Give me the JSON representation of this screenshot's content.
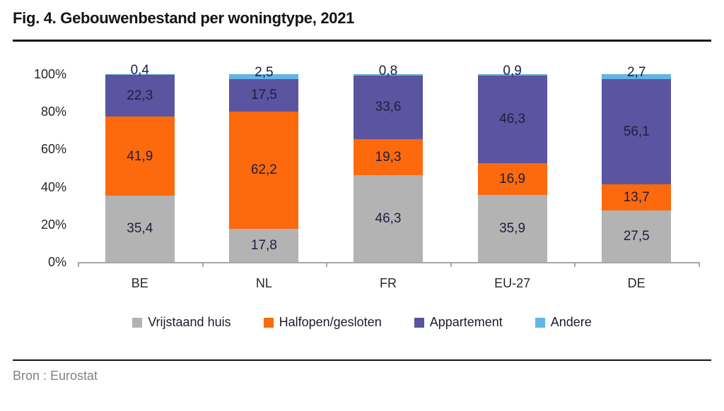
{
  "header": {
    "title": "Fig. 4. Gebouwenbestand per woningtype, 2021"
  },
  "chart_data": {
    "type": "bar",
    "subtype": "stacked-percentage",
    "title": "Fig. 4. Gebouwenbestand per woningtype, 2021",
    "categories": [
      "BE",
      "NL",
      "FR",
      "EU-27",
      "DE"
    ],
    "series": [
      {
        "name": "Vrijstaand huis",
        "color": "#b3b3b3",
        "values": [
          35.4,
          17.8,
          46.3,
          35.9,
          27.5
        ],
        "labels": [
          "35,4",
          "17,8",
          "46,3",
          "35,9",
          "27,5"
        ]
      },
      {
        "name": "Halfopen/gesloten",
        "color": "#fd690d",
        "values": [
          41.9,
          62.2,
          19.3,
          16.9,
          13.7
        ],
        "labels": [
          "41,9",
          "62,2",
          "19,3",
          "16,9",
          "13,7"
        ]
      },
      {
        "name": "Appartement",
        "color": "#5b54a0",
        "values": [
          22.3,
          17.5,
          33.6,
          46.3,
          56.1
        ],
        "labels": [
          "22,3",
          "17,5",
          "33,6",
          "46,3",
          "56,1"
        ]
      },
      {
        "name": "Andere",
        "color": "#64b5e5",
        "values": [
          0.4,
          2.5,
          0.8,
          0.9,
          2.7
        ],
        "labels": [
          "0,4",
          "2,5",
          "0,8",
          "0,9",
          "2,7"
        ]
      }
    ],
    "y_ticks": [
      {
        "label": "0%",
        "value": 0
      },
      {
        "label": "20%",
        "value": 20
      },
      {
        "label": "40%",
        "value": 40
      },
      {
        "label": "60%",
        "value": 60
      },
      {
        "label": "80%",
        "value": 80
      },
      {
        "label": "100%",
        "value": 100
      }
    ],
    "ylim": [
      0,
      100
    ],
    "xlabel": "",
    "ylabel": "",
    "grid": false,
    "legend_position": "bottom",
    "value_label_color": "#1f1e3e",
    "axis_line_color": "#a6a6a6"
  },
  "footer": {
    "source": "Bron : Eurostat"
  }
}
